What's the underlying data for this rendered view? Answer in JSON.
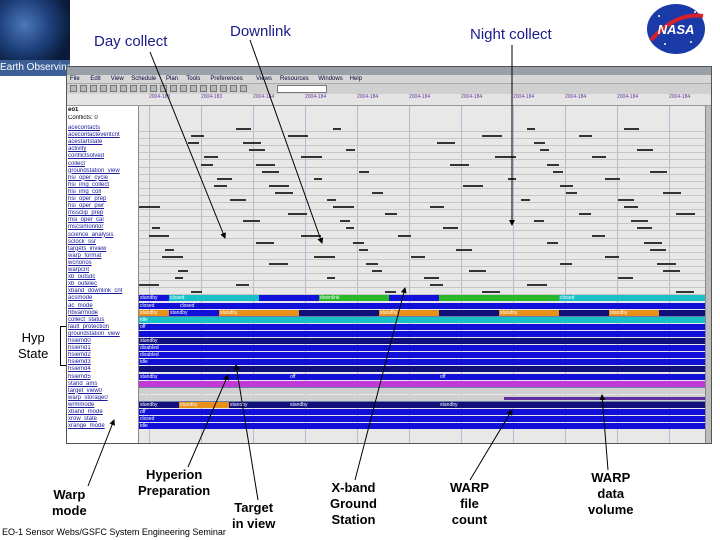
{
  "slide": {
    "banner_text": "Earth Observing",
    "labels": {
      "day_collect": "Day collect",
      "downlink": "Downlink",
      "night_collect": "Night collect"
    },
    "nasa_logo_text": "NASA",
    "hyp_state": "Hyp\nState",
    "callouts": {
      "warp_mode": "Warp\nmode",
      "hyperion_prep": "Hyperion\nPreparation",
      "target_in_view": "Target\nin view",
      "xband_station": "X-band\nGround\nStation",
      "warp_file_count": "WARP\nfile\ncount",
      "warp_data_volume": "WARP\ndata\nvolume"
    },
    "footer": "EO-1 Sensor Webs/GSFC System Engineering Seminar"
  },
  "app": {
    "menu": [
      "File",
      "Edit",
      "View",
      "Schedule",
      "Plan",
      "Tools",
      "Preferences",
      "Views",
      "Resources",
      "Windows",
      "Help"
    ],
    "toolbar_select": "",
    "timeline_ticks": [
      "2004-183",
      "2004-183",
      "2004-184",
      "2004-184",
      "2004-184",
      "2004-184",
      "2004-184",
      "2004-184",
      "2004-184",
      "2004-184",
      "2004-184"
    ],
    "header_rows": [
      "eo1",
      "Conflicts: 0"
    ],
    "resources": [
      "acecontacts",
      "acecontacteventcnt",
      "acestartstate",
      "activity",
      "conflictsolved",
      "collect",
      "groundstation_view",
      "hsi_oper_cycle",
      "hsi_img_collect",
      "hsi_img_coll",
      "hsi_oper_prep",
      "hsi_oper_pwr",
      "mssclip_prep",
      "msi_oper_cal",
      "mscsimonitor",
      "science_analysis",
      "sclock_ssr",
      "targets_inview",
      "warp_format",
      "wcnonos",
      "warpcnt",
      "xb_outsdc",
      "xb_outelec",
      "xband_downlink_cnt",
      "acsmode",
      "ac_mode",
      "hbvarmode",
      "collect_status",
      "fault_protection",
      "groundstation_view",
      "hsiemd0",
      "hsiemd1",
      "hsiemd2",
      "hsiemd3",
      "hsiemd4",
      "hsiemd5",
      "stand_ams",
      "target_view0",
      "warp_storage0",
      "wrmmode",
      "xband_mode",
      "xrow_state",
      "xrange_mode"
    ],
    "state_labels": {
      "standby": "standby",
      "closed": "closed",
      "off": "off",
      "idle": "idle",
      "disabled": "disabled",
      "collect": "collect",
      "downlink": "downlink"
    },
    "colors": {
      "blue": "#1010d8",
      "cyan": "#18c0c8",
      "green": "#2ab82a",
      "magenta": "#c23ad6",
      "purple": "#5f2fa0",
      "orange": "#e8901a",
      "navy": "#10107a"
    }
  }
}
